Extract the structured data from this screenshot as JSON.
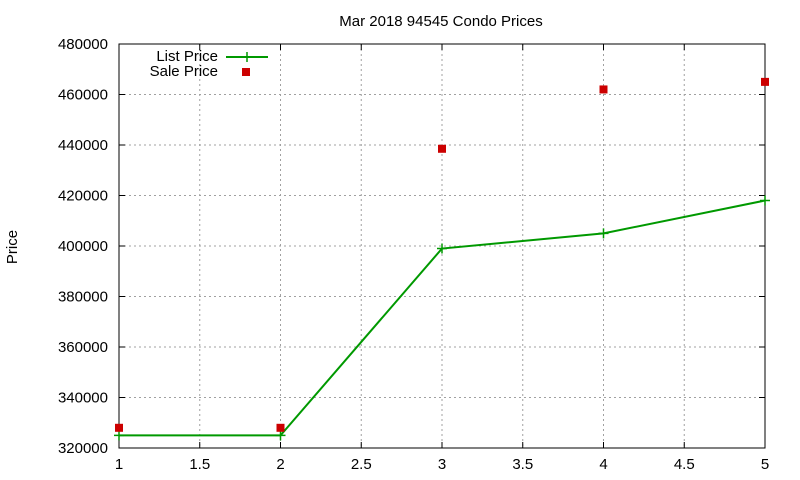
{
  "chart_data": {
    "type": "line",
    "title": "Mar 2018 94545 Condo Prices",
    "xlabel": "",
    "ylabel": "Price",
    "xlim": [
      1,
      5
    ],
    "ylim": [
      320000,
      480000
    ],
    "x_ticks": [
      "1",
      "1.5",
      "2",
      "2.5",
      "3",
      "3.5",
      "4",
      "4.5",
      "5"
    ],
    "y_ticks": [
      "320000",
      "340000",
      "360000",
      "380000",
      "400000",
      "420000",
      "440000",
      "460000",
      "480000"
    ],
    "grid": true,
    "legend_position": "top-left",
    "series": [
      {
        "name": "List Price",
        "style": "line+plus",
        "color": "#009900",
        "x": [
          1,
          2,
          3,
          4,
          5
        ],
        "y": [
          325000,
          325000,
          399000,
          405000,
          418000
        ]
      },
      {
        "name": "Sale Price",
        "style": "square-points",
        "color": "#cc0000",
        "x": [
          1,
          2,
          3,
          4,
          5
        ],
        "y": [
          328000,
          328000,
          438500,
          462000,
          465000
        ]
      }
    ]
  }
}
